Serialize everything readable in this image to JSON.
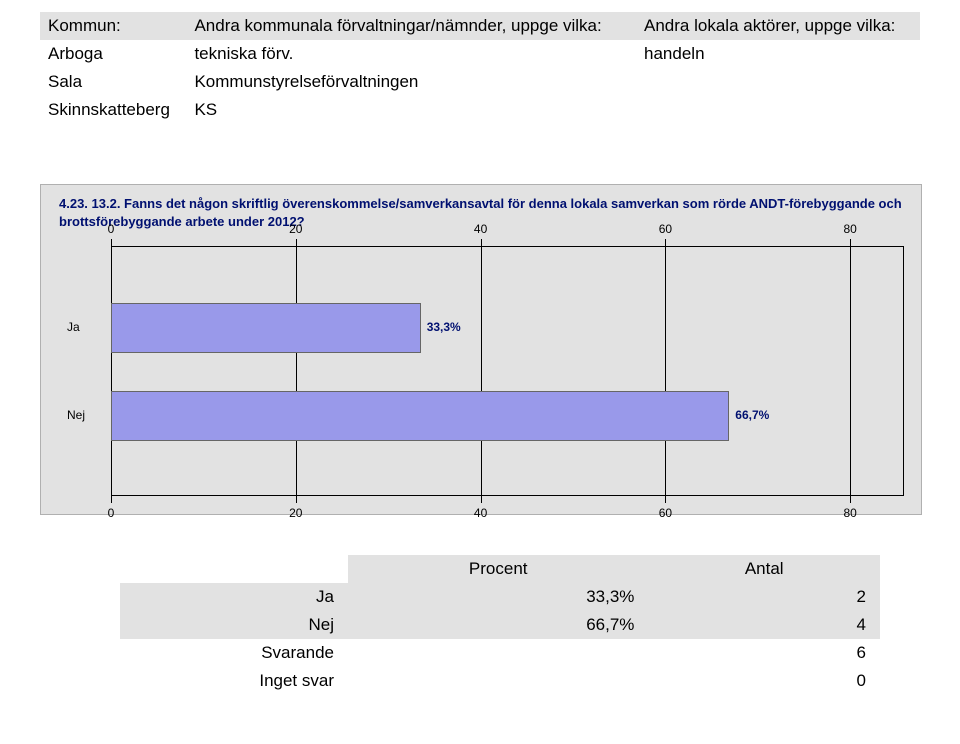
{
  "topTable": {
    "headers": [
      "Kommun:",
      "Andra kommunala förvaltningar/nämnder, uppge vilka:",
      "Andra lokala aktörer, uppge vilka:"
    ],
    "rows": [
      [
        "Arboga",
        "tekniska förv.",
        "handeln"
      ],
      [
        "Sala",
        "Kommunstyrelseförvaltningen",
        ""
      ],
      [
        "Skinnskatteberg",
        "KS",
        ""
      ]
    ]
  },
  "chart": {
    "type": "bar-horizontal",
    "title": "4.23. 13.2. Fanns det någon skriftlig överenskommelse/samverkansavtal för denna lokala samverkan som rörde ANDT-förebyggande och brottsförebyggande arbete under 2012?",
    "background_color": "#e2e2e2",
    "bar_color": "#9999ea",
    "bar_border_color": "#666666",
    "label_color": "#001070",
    "xlim": [
      0,
      85.714
    ],
    "xtick_step": 20,
    "xtick_values": [
      0,
      20,
      40,
      60,
      80
    ],
    "bars": [
      {
        "label": "Ja",
        "value": 33.3,
        "value_label": "33,3%"
      },
      {
        "label": "Nej",
        "value": 66.7,
        "value_label": "66,7%"
      }
    ],
    "title_fontsize": 13,
    "axis_fontsize": 12
  },
  "summary": {
    "headers": [
      "Procent",
      "Antal"
    ],
    "rows": [
      {
        "label": "Ja",
        "percent": "33,3%",
        "count": "2",
        "shaded": true
      },
      {
        "label": "Nej",
        "percent": "66,7%",
        "count": "4",
        "shaded": true
      },
      {
        "label": "Svarande",
        "percent": "",
        "count": "6",
        "shaded": false
      },
      {
        "label": "Inget svar",
        "percent": "",
        "count": "0",
        "shaded": false
      }
    ]
  }
}
